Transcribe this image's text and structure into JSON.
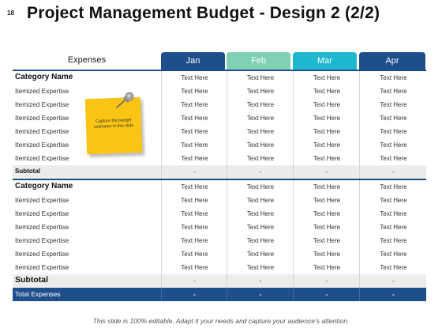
{
  "slide_number": "18",
  "title": "Project Management Budget - Design 2 (2/2)",
  "table": {
    "expenses_label": "Expenses",
    "months": [
      {
        "label": "Jan",
        "color": "#1f4e8c"
      },
      {
        "label": "Feb",
        "color": "#7fd1b3"
      },
      {
        "label": "Mar",
        "color": "#1fb7cf"
      },
      {
        "label": "Apr",
        "color": "#1f4e8c"
      }
    ],
    "sections": [
      {
        "category": "Category Name",
        "category_values": [
          "Text Here",
          "Text Here",
          "Text Here",
          "Text Here"
        ],
        "items": [
          {
            "label": "Itemized  Expertise",
            "values": [
              "Text Here",
              "Text Here",
              "Text Here",
              "Text Here"
            ]
          },
          {
            "label": "Itemized  Expertise",
            "values": [
              "Text Here",
              "Text Here",
              "Text Here",
              "Text Here"
            ]
          },
          {
            "label": "Itemized  Expertise",
            "values": [
              "Text Here",
              "Text Here",
              "Text Here",
              "Text Here"
            ]
          },
          {
            "label": "Itemized  Expertise",
            "values": [
              "Text Here",
              "Text Here",
              "Text Here",
              "Text Here"
            ]
          },
          {
            "label": "Itemized  Expertise",
            "values": [
              "Text Here",
              "Text Here",
              "Text Here",
              "Text Here"
            ]
          },
          {
            "label": "Itemized  Expertise",
            "values": [
              "Text Here",
              "Text Here",
              "Text Here",
              "Text Here"
            ]
          }
        ],
        "subtotal_label": "Subtotal",
        "subtotal_values": [
          "-",
          "-",
          "-",
          "-"
        ]
      },
      {
        "category": "Category Name",
        "category_values": [
          "Text Here",
          "Text Here",
          "Text Here",
          "Text Here"
        ],
        "items": [
          {
            "label": "Itemized  Expertise",
            "values": [
              "Text Here",
              "Text Here",
              "Text Here",
              "Text Here"
            ]
          },
          {
            "label": "Itemized  Expertise",
            "values": [
              "Text Here",
              "Text Here",
              "Text Here",
              "Text Here"
            ]
          },
          {
            "label": "Itemized  Expertise",
            "values": [
              "Text Here",
              "Text Here",
              "Text Here",
              "Text Here"
            ]
          },
          {
            "label": "Itemized  Expertise",
            "values": [
              "Text Here",
              "Text Here",
              "Text Here",
              "Text Here"
            ]
          },
          {
            "label": "Itemized  Expertise",
            "values": [
              "Text Here",
              "Text Here",
              "Text Here",
              "Text Here"
            ]
          },
          {
            "label": "Itemized  Expertise",
            "values": [
              "Text Here",
              "Text Here",
              "Text Here",
              "Text Here"
            ]
          }
        ],
        "subtotal_label": "Subtotal",
        "subtotal_values": [
          "-",
          "-",
          "-",
          "-"
        ]
      }
    ],
    "total_label": "Total Expenses",
    "total_values": [
      "-",
      "-",
      "-",
      "-"
    ]
  },
  "sticky_note": {
    "text": "Capture the budget estimates in this slide",
    "color": "#f9c512",
    "icon": "push-pin-icon"
  },
  "footer": "This slide is 100% editable. Adapt it your needs and capture your audience’s attention."
}
